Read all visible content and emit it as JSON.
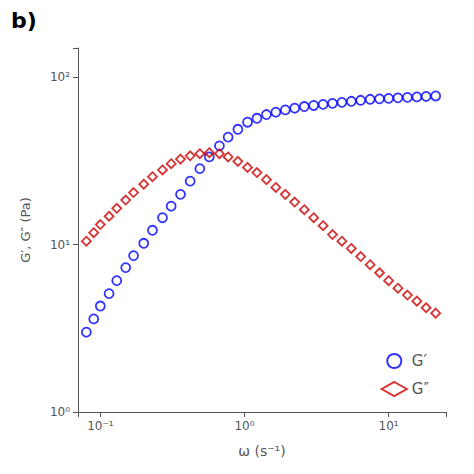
{
  "chart_data": {
    "type": "scatter",
    "title": "b)",
    "xlabel": "ω (s⁻¹)",
    "ylabel": "G′, G″ (Pa)",
    "log": true,
    "grid": false,
    "legend": "lower right",
    "xlim": [
      0.07,
      25.0
    ],
    "ylim": [
      1.0,
      150.0
    ],
    "xticks": [
      {
        "value": 0.1,
        "label": "10⁻¹"
      },
      {
        "value": 1,
        "label": "10⁰"
      },
      {
        "value": 10,
        "label": "10¹"
      }
    ],
    "yticks": [
      {
        "value": 1,
        "label": "10⁰"
      },
      {
        "value": 10,
        "label": "10¹"
      },
      {
        "value": 100,
        "label": "10²"
      }
    ],
    "x": [
      0.08,
      0.09,
      0.1,
      0.115,
      0.13,
      0.15,
      0.17,
      0.2,
      0.23,
      0.27,
      0.31,
      0.36,
      0.42,
      0.49,
      0.57,
      0.67,
      0.77,
      0.9,
      1.05,
      1.22,
      1.42,
      1.65,
      1.92,
      2.23,
      2.6,
      3.02,
      3.51,
      4.08,
      4.74,
      5.51,
      6.4,
      7.44,
      8.65,
      10.0,
      11.6,
      13.5,
      15.7,
      18.2,
      21.2
    ],
    "series": [
      {
        "name": "G′",
        "color": "#0000ff",
        "marker": "circle",
        "values": [
          3.0,
          3.6,
          4.3,
          5.1,
          6.1,
          7.3,
          8.6,
          10.2,
          12.2,
          14.5,
          17.0,
          20.0,
          24.0,
          28.5,
          33.5,
          39.0,
          44.0,
          49.0,
          54.0,
          57.0,
          60.0,
          62.0,
          64.0,
          65.5,
          67.0,
          68.0,
          69.0,
          70.0,
          71.0,
          72.0,
          73.0,
          74.0,
          74.5,
          75.0,
          75.5,
          76.0,
          76.5,
          77.0,
          77.5
        ]
      },
      {
        "name": "G″",
        "color": "#cc0000",
        "marker": "diamond",
        "values": [
          10.5,
          11.8,
          13.2,
          14.8,
          16.5,
          18.5,
          20.5,
          23.0,
          25.5,
          28.0,
          30.5,
          32.5,
          34.0,
          35.0,
          35.5,
          35.0,
          33.5,
          31.5,
          29.0,
          27.0,
          24.5,
          22.0,
          20.0,
          18.0,
          16.2,
          14.5,
          13.0,
          11.5,
          10.5,
          9.5,
          8.5,
          7.6,
          6.8,
          6.1,
          5.5,
          5.0,
          4.6,
          4.2,
          3.9
        ]
      }
    ]
  }
}
